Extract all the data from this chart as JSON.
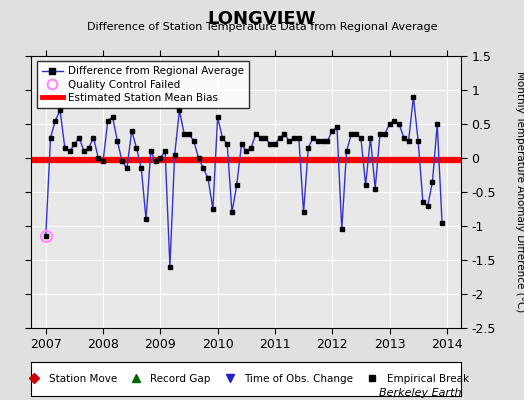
{
  "title": "LONGVIEW",
  "subtitle": "Difference of Station Temperature Data from Regional Average",
  "ylabel": "Monthly Temperature Anomaly Difference (°C)",
  "xlim": [
    2006.75,
    2014.25
  ],
  "ylim": [
    -2.5,
    1.5
  ],
  "yticks": [
    -2.5,
    -2.0,
    -1.5,
    -1.0,
    -0.5,
    0.0,
    0.5,
    1.0,
    1.5
  ],
  "ytick_labels": [
    "-2.5",
    "-2",
    "-1.5",
    "-1",
    "-0.5",
    "0",
    "0.5",
    "1",
    "1.5"
  ],
  "xticks": [
    2007,
    2008,
    2009,
    2010,
    2011,
    2012,
    2013,
    2014
  ],
  "mean_bias": -0.03,
  "background_color": "#e0e0e0",
  "plot_bg_color": "#e8e8e8",
  "line_color": "#3333cc",
  "bias_color": "#ff0000",
  "berkeley_earth_text": "Berkeley Earth",
  "times": [
    2007.0,
    2007.083,
    2007.167,
    2007.25,
    2007.333,
    2007.417,
    2007.5,
    2007.583,
    2007.667,
    2007.75,
    2007.833,
    2007.917,
    2008.0,
    2008.083,
    2008.167,
    2008.25,
    2008.333,
    2008.417,
    2008.5,
    2008.583,
    2008.667,
    2008.75,
    2008.833,
    2008.917,
    2009.0,
    2009.083,
    2009.167,
    2009.25,
    2009.333,
    2009.417,
    2009.5,
    2009.583,
    2009.667,
    2009.75,
    2009.833,
    2009.917,
    2010.0,
    2010.083,
    2010.167,
    2010.25,
    2010.333,
    2010.417,
    2010.5,
    2010.583,
    2010.667,
    2010.75,
    2010.833,
    2010.917,
    2011.0,
    2011.083,
    2011.167,
    2011.25,
    2011.333,
    2011.417,
    2011.5,
    2011.583,
    2011.667,
    2011.75,
    2011.833,
    2011.917,
    2012.0,
    2012.083,
    2012.167,
    2012.25,
    2012.333,
    2012.417,
    2012.5,
    2012.583,
    2012.667,
    2012.75,
    2012.833,
    2012.917,
    2013.0,
    2013.083,
    2013.167,
    2013.25,
    2013.333,
    2013.417,
    2013.5,
    2013.583,
    2013.667,
    2013.75,
    2013.833,
    2013.917
  ],
  "values": [
    -1.15,
    0.3,
    0.55,
    0.7,
    0.15,
    0.1,
    0.2,
    0.3,
    0.1,
    0.15,
    0.3,
    0.0,
    -0.05,
    0.55,
    0.6,
    0.25,
    -0.05,
    -0.15,
    0.4,
    0.15,
    -0.15,
    -0.9,
    0.1,
    -0.05,
    0.0,
    0.1,
    -1.6,
    0.05,
    0.7,
    0.35,
    0.35,
    0.25,
    0.0,
    -0.15,
    -0.3,
    -0.75,
    0.6,
    0.3,
    0.2,
    -0.8,
    -0.4,
    0.2,
    0.1,
    0.15,
    0.35,
    0.3,
    0.3,
    0.2,
    0.2,
    0.3,
    0.35,
    0.25,
    0.3,
    0.3,
    -0.8,
    0.15,
    0.3,
    0.25,
    0.25,
    0.25,
    0.4,
    0.45,
    -1.05,
    0.1,
    0.35,
    0.35,
    0.3,
    -0.4,
    0.3,
    -0.45,
    0.35,
    0.35,
    0.5,
    0.55,
    0.5,
    0.3,
    0.25,
    0.9,
    0.25,
    -0.65,
    -0.7,
    -0.35,
    0.5,
    -0.95
  ],
  "qc_failed_x": [
    2007.0
  ],
  "qc_failed_y": [
    -1.15
  ]
}
